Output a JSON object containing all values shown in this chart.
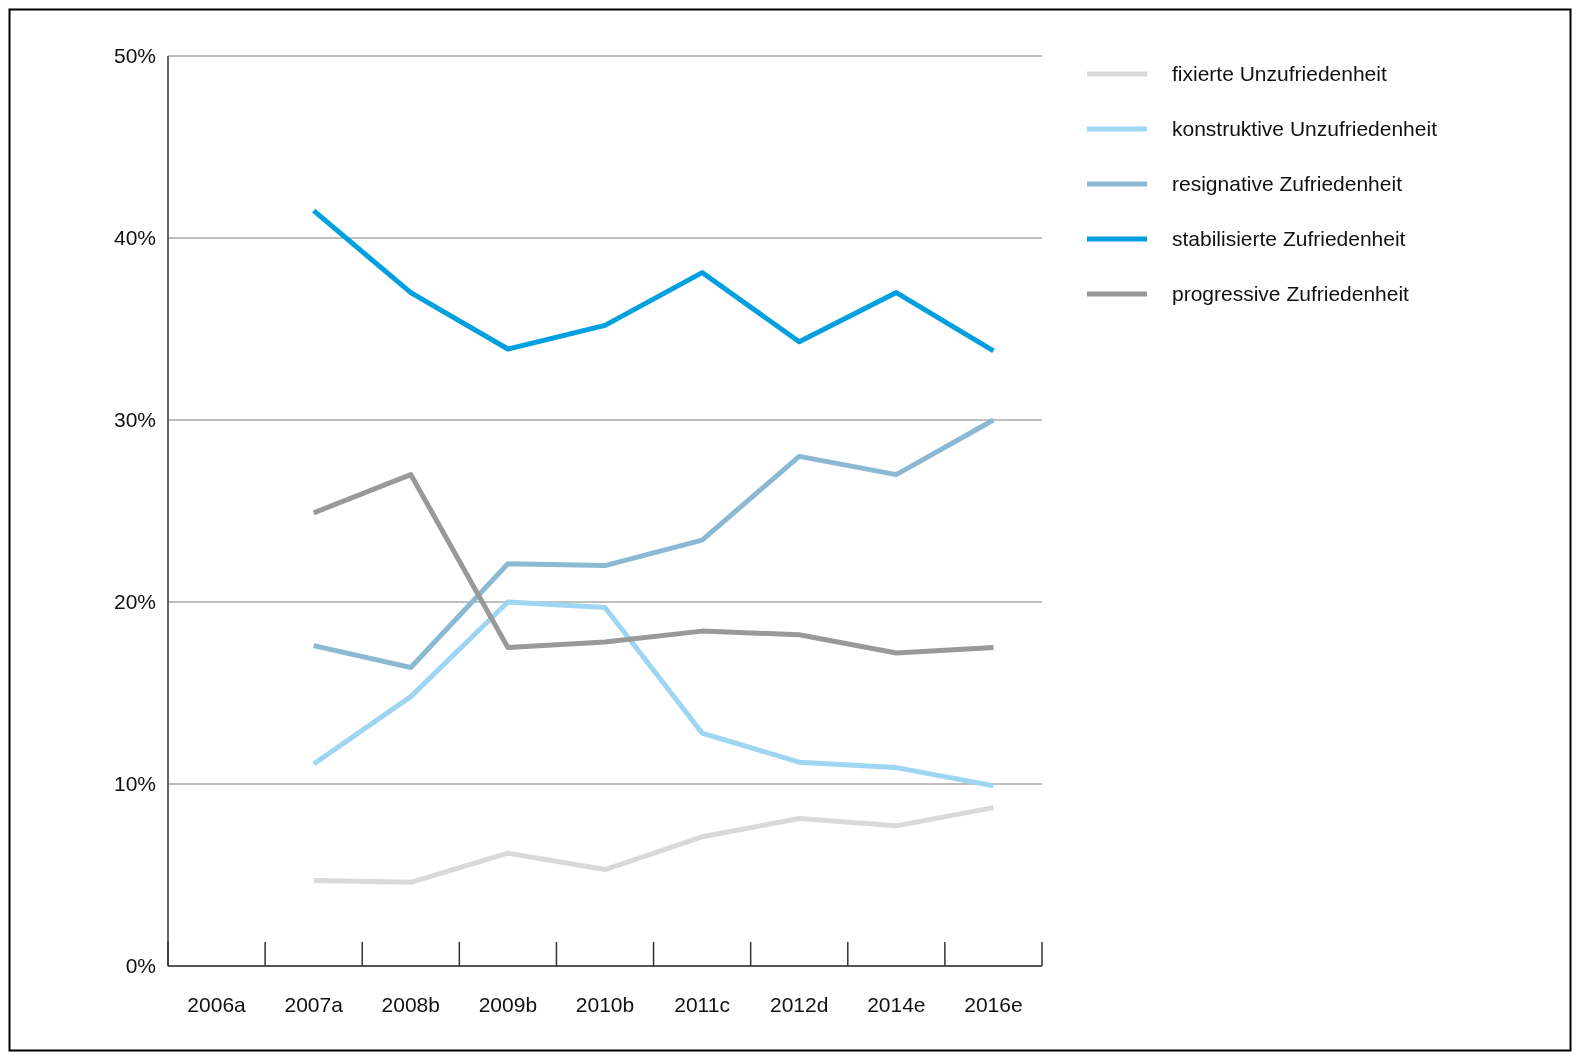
{
  "chart_data": {
    "type": "line",
    "categories": [
      "2006a",
      "2007a",
      "2008b",
      "2009b",
      "2010b",
      "2011c",
      "2012d",
      "2014e",
      "2016e"
    ],
    "ylim": [
      0,
      50
    ],
    "yticks": [
      {
        "value": 0,
        "label": "0%"
      },
      {
        "value": 10,
        "label": "10%"
      },
      {
        "value": 20,
        "label": "20%"
      },
      {
        "value": 30,
        "label": "30%"
      },
      {
        "value": 40,
        "label": "40%"
      },
      {
        "value": 50,
        "label": "50%"
      }
    ],
    "grid": "y",
    "legend": "top right",
    "marker": "none",
    "line_style": "solid",
    "series": [
      {
        "name": "fixierte Unzufriedenheit",
        "color": "#d9d9d9",
        "values": [
          null,
          4.7,
          4.6,
          6.2,
          5.3,
          7.1,
          8.1,
          7.7,
          8.7
        ]
      },
      {
        "name": "konstruktive Unzufriedenheit",
        "color": "#9dd5f2",
        "values": [
          null,
          11.1,
          14.8,
          20.0,
          19.7,
          12.8,
          11.2,
          10.9,
          9.9
        ]
      },
      {
        "name": "resignative Zufriedenheit",
        "color": "#8bb8d3",
        "values": [
          null,
          17.6,
          16.4,
          22.1,
          22.0,
          23.4,
          28.0,
          27.0,
          30.0
        ]
      },
      {
        "name": "stabilisierte Zufriedenheit",
        "color": "#00a0e0",
        "values": [
          null,
          41.5,
          37.0,
          33.9,
          35.2,
          38.1,
          34.3,
          37.0,
          33.8
        ]
      },
      {
        "name": "progressive Zufriedenheit",
        "color": "#999999",
        "values": [
          null,
          24.9,
          27.0,
          17.5,
          17.8,
          18.4,
          18.2,
          17.2,
          17.5
        ]
      }
    ]
  }
}
